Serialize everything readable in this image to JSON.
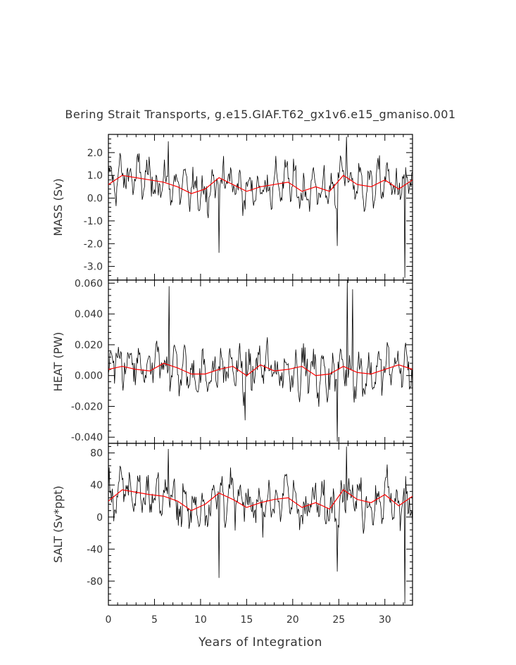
{
  "title": "Bering Strait Transports, g.e15.GIAF.T62_gx1v6.e15_gmaniso.001",
  "xlabel": "Years of Integration",
  "colors": {
    "raw": "#000000",
    "smooth": "#ff0000",
    "axes": "#000000"
  },
  "chart_data": [
    {
      "type": "line",
      "ylabel": "MASS (Sv)",
      "xlim": [
        0,
        33
      ],
      "ylim": [
        -3.6,
        2.8
      ],
      "xticks": [
        "0",
        "5",
        "10",
        "15",
        "20",
        "25",
        "30"
      ],
      "yticks": [
        "2.0",
        "1.0",
        "0.0",
        "-1.0",
        "-2.0",
        "-3.0"
      ],
      "smooth": {
        "x": [
          0,
          1.5,
          3,
          4.5,
          6,
          7.5,
          9,
          10.5,
          12,
          13.5,
          15,
          16.5,
          18,
          19.5,
          21,
          22.5,
          24,
          25.5,
          27,
          28.5,
          30,
          31.5,
          33
        ],
        "y": [
          0.6,
          1.0,
          0.9,
          0.8,
          0.7,
          0.5,
          0.2,
          0.4,
          0.9,
          0.6,
          0.3,
          0.5,
          0.6,
          0.7,
          0.3,
          0.5,
          0.3,
          1.0,
          0.6,
          0.5,
          0.8,
          0.4,
          0.8
        ]
      },
      "extremes": {
        "x": [
          6.5,
          12.0,
          25.8,
          24.8,
          32.2
        ],
        "y": [
          2.5,
          -2.4,
          2.7,
          -2.1,
          -3.5
        ]
      }
    },
    {
      "type": "line",
      "ylabel": "HEAT (PW)",
      "xlim": [
        0,
        33
      ],
      "ylim": [
        -0.044,
        0.062
      ],
      "xticks": [
        "0",
        "5",
        "10",
        "15",
        "20",
        "25",
        "30"
      ],
      "yticks": [
        "0.060",
        "0.040",
        "0.020",
        "0.000",
        "-0.020",
        "-0.040"
      ],
      "smooth": {
        "x": [
          0,
          1.5,
          3,
          4.5,
          6,
          7.5,
          9,
          10.5,
          12,
          13.5,
          15,
          16.5,
          18,
          19.5,
          21,
          22.5,
          24,
          25.5,
          27,
          28.5,
          30,
          31.5,
          33
        ],
        "y": [
          0.004,
          0.006,
          0.004,
          0.003,
          0.008,
          0.005,
          0.001,
          0.001,
          0.004,
          0.006,
          0.0,
          0.007,
          0.003,
          0.004,
          0.006,
          0.0,
          0.001,
          0.006,
          0.002,
          0.001,
          0.004,
          0.007,
          0.004
        ]
      },
      "extremes": {
        "x": [
          6.6,
          25.9,
          24.8,
          26.5,
          14.8
        ],
        "y": [
          0.058,
          0.062,
          -0.043,
          0.056,
          -0.029
        ]
      }
    },
    {
      "type": "line",
      "ylabel": "SALT (Sv*ppt)",
      "xlim": [
        0,
        33
      ],
      "ylim": [
        -110,
        92
      ],
      "xticks": [
        "0",
        "5",
        "10",
        "15",
        "20",
        "25",
        "30"
      ],
      "yticks": [
        "80",
        "40",
        "0",
        "-40",
        "-80"
      ],
      "smooth": {
        "x": [
          0,
          1.5,
          3,
          4.5,
          6,
          7.5,
          9,
          10.5,
          12,
          13.5,
          15,
          16.5,
          18,
          19.5,
          21,
          22.5,
          24,
          25.5,
          27,
          28.5,
          30,
          31.5,
          33
        ],
        "y": [
          20,
          34,
          31,
          28,
          26,
          20,
          8,
          16,
          30,
          22,
          12,
          18,
          22,
          24,
          12,
          18,
          10,
          34,
          22,
          18,
          28,
          14,
          26
        ]
      },
      "extremes": {
        "x": [
          6.5,
          12.0,
          25.8,
          24.8,
          32.2
        ],
        "y": [
          85,
          -76,
          88,
          -68,
          -108
        ]
      }
    }
  ]
}
